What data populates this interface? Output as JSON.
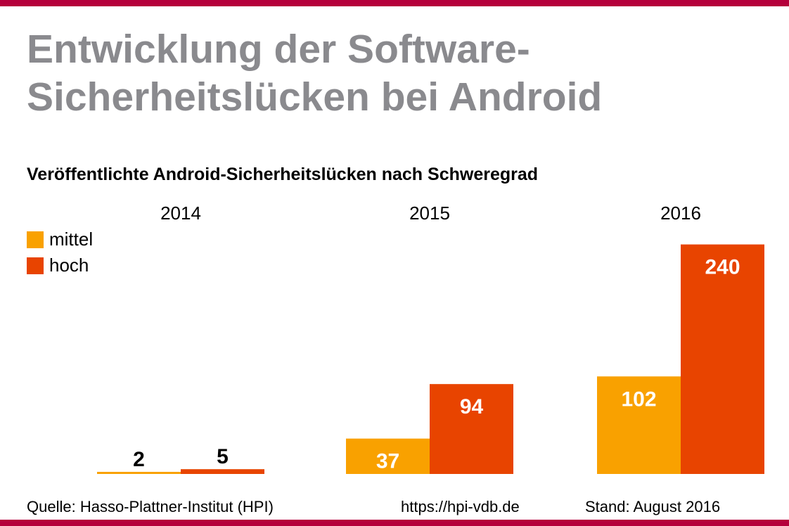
{
  "title": "Entwicklung der Software-Sicherheitslücken bei Android",
  "subtitle": "Veröffentlichte Android-Sicherheitslücken nach Schweregrad",
  "footer": {
    "source": "Quelle: Hasso-Plattner-Institut (HPI)",
    "url": "https://hpi-vdb.de",
    "date": "Stand: August 2016"
  },
  "colors": {
    "accent": "#b5003b",
    "title": "#8a8a8e",
    "mittel": "#f9a100",
    "hoch": "#e84400"
  },
  "chart_data": {
    "type": "bar",
    "categories": [
      "2014",
      "2015",
      "2016"
    ],
    "series": [
      {
        "name": "mittel",
        "values": [
          2,
          37,
          102
        ]
      },
      {
        "name": "hoch",
        "values": [
          5,
          94,
          240
        ]
      }
    ],
    "data_labels": true,
    "legend": "top-left",
    "grid": false
  }
}
